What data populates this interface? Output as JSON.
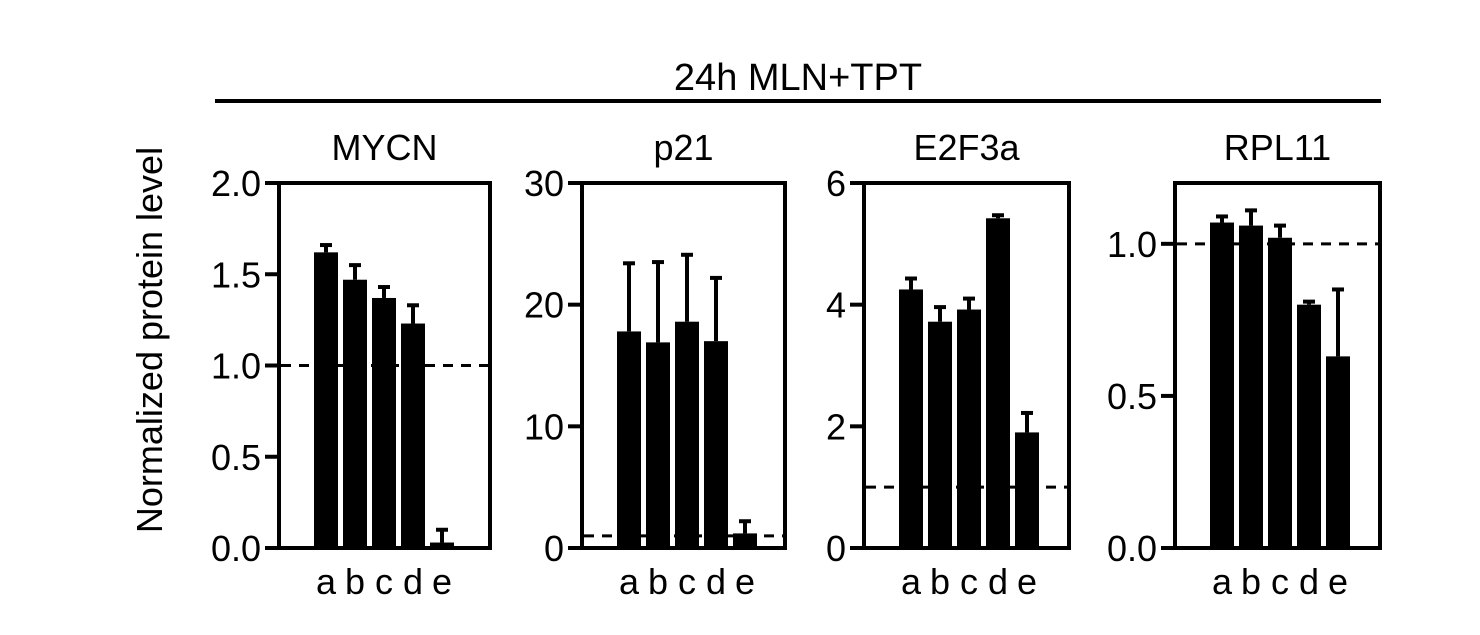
{
  "figure": {
    "header": "24h MLN+TPT",
    "ylabel": "Normalized protein level"
  },
  "chart_data": [
    {
      "type": "bar",
      "title": "MYCN",
      "categories": [
        "a",
        "b",
        "c",
        "d",
        "e"
      ],
      "values": [
        1.62,
        1.47,
        1.37,
        1.23,
        0.03
      ],
      "errors": [
        0.04,
        0.08,
        0.06,
        0.1,
        0.07
      ],
      "ylim": [
        0,
        2.0
      ],
      "ticks": [
        0.0,
        0.5,
        1.0,
        1.5,
        2.0
      ],
      "tick_labels": [
        "0.0",
        "0.5",
        "1.0",
        "1.5",
        "2.0"
      ],
      "reference_line": 1.0
    },
    {
      "type": "bar",
      "title": "p21",
      "categories": [
        "a",
        "b",
        "c",
        "d",
        "e"
      ],
      "values": [
        17.8,
        16.9,
        18.6,
        17.0,
        1.2
      ],
      "errors": [
        5.6,
        6.6,
        5.5,
        5.2,
        1.0
      ],
      "ylim": [
        0,
        30
      ],
      "ticks": [
        0,
        10,
        20,
        30
      ],
      "tick_labels": [
        "0",
        "10",
        "20",
        "30"
      ],
      "reference_line": 1.0
    },
    {
      "type": "bar",
      "title": "E2F3a",
      "categories": [
        "a",
        "b",
        "c",
        "d",
        "e"
      ],
      "values": [
        4.25,
        3.72,
        3.92,
        5.42,
        1.9
      ],
      "errors": [
        0.18,
        0.24,
        0.18,
        0.05,
        0.32
      ],
      "ylim": [
        0,
        6
      ],
      "ticks": [
        0,
        2,
        4,
        6
      ],
      "tick_labels": [
        "0",
        "2",
        "4",
        "6"
      ],
      "reference_line": 1.0
    },
    {
      "type": "bar",
      "title": "RPL11",
      "categories": [
        "a",
        "b",
        "c",
        "d",
        "e"
      ],
      "values": [
        1.07,
        1.06,
        1.02,
        0.8,
        0.63
      ],
      "errors": [
        0.02,
        0.05,
        0.04,
        0.01,
        0.22
      ],
      "ylim": [
        0,
        1.2
      ],
      "ticks": [
        0.0,
        0.5,
        1.0
      ],
      "tick_labels": [
        "0.0",
        "0.5",
        "1.0"
      ],
      "reference_line": 1.0
    }
  ]
}
